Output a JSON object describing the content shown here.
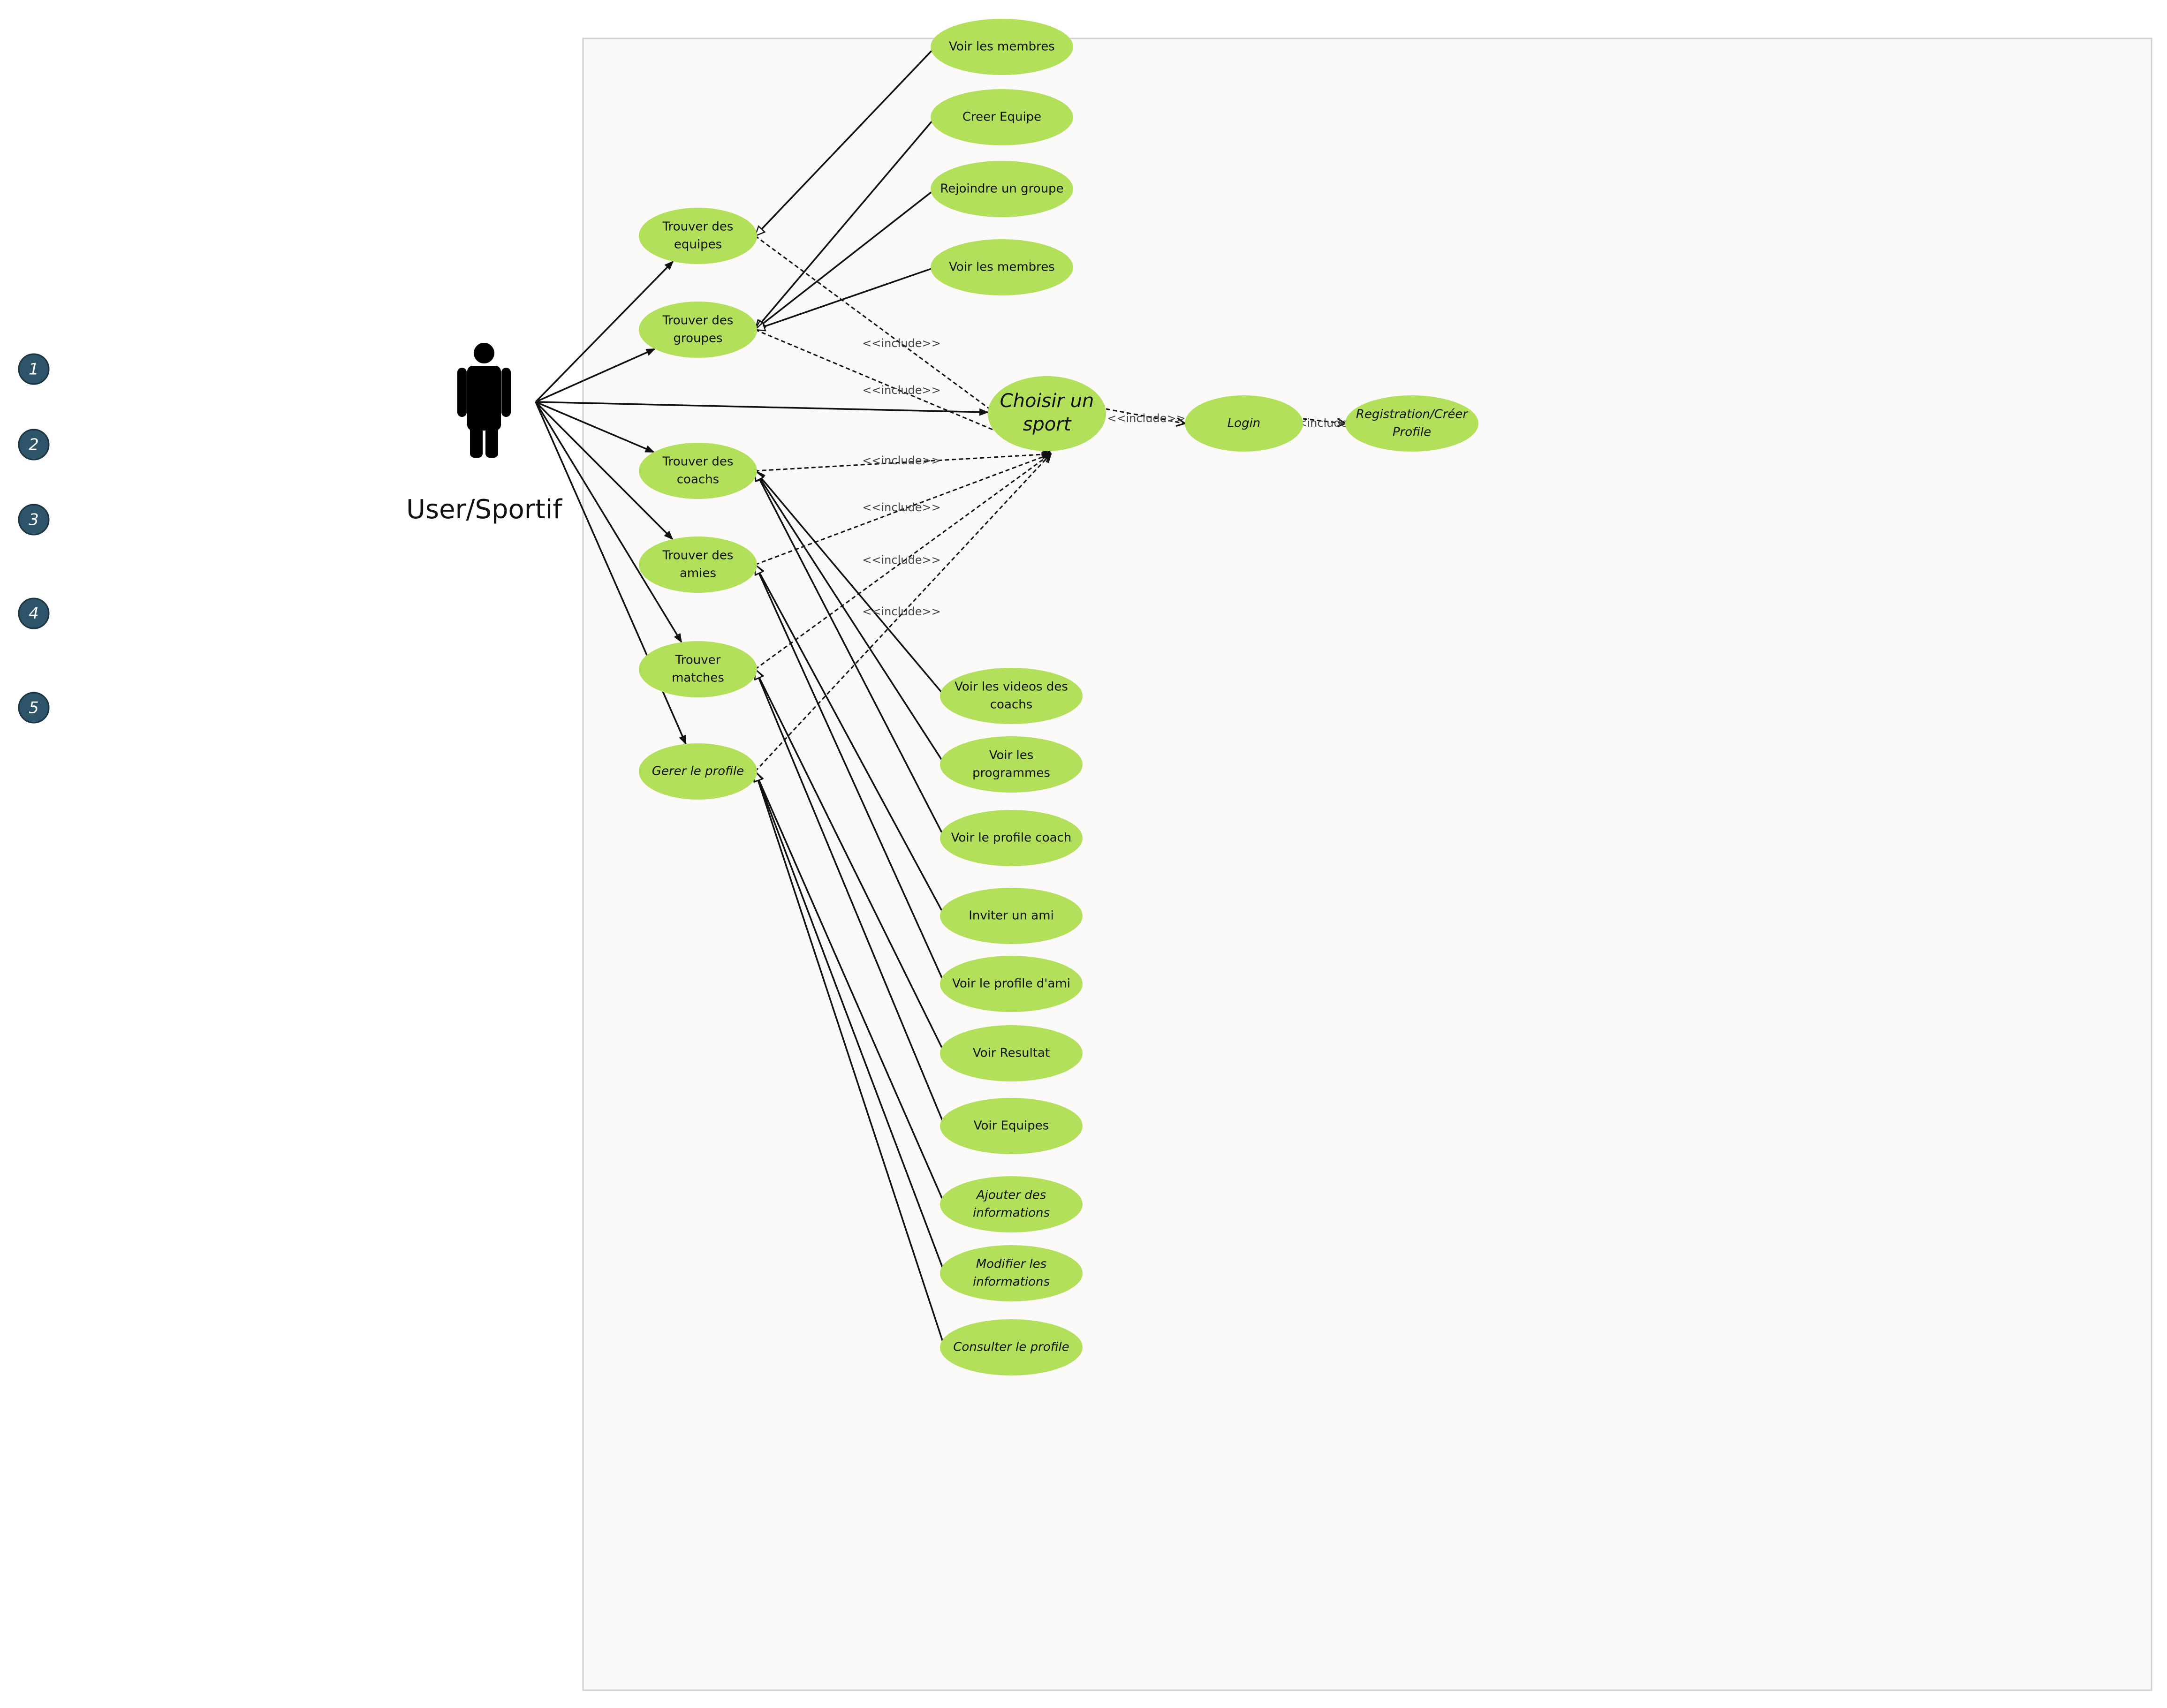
{
  "colors": {
    "usecase_fill": "#b2e05a",
    "boundary_fill": "#fbfaf8",
    "boundary_stroke": "#cfcfcf",
    "marker_fill": "#2d5468",
    "line": "#111111"
  },
  "actor": {
    "label": "User/Sportif",
    "icon": "person-icon"
  },
  "markers": [
    "1",
    "2",
    "3",
    "4",
    "5"
  ],
  "use_cases": [
    {
      "id": "voir_membres_1",
      "lines": [
        "Voir les membres"
      ],
      "italic": false
    },
    {
      "id": "creer_equipe",
      "lines": [
        "Creer Equipe"
      ],
      "italic": false
    },
    {
      "id": "rejoindre_groupe",
      "lines": [
        "Rejoindre un groupe"
      ],
      "italic": false
    },
    {
      "id": "voir_membres_2",
      "lines": [
        "Voir les membres"
      ],
      "italic": false
    },
    {
      "id": "trouver_equipes",
      "lines": [
        "Trouver des",
        "equipes"
      ],
      "italic": false
    },
    {
      "id": "trouver_groupes",
      "lines": [
        "Trouver des",
        "groupes"
      ],
      "italic": false
    },
    {
      "id": "trouver_coachs",
      "lines": [
        "Trouver des",
        "coachs"
      ],
      "italic": false
    },
    {
      "id": "trouver_amies",
      "lines": [
        "Trouver des",
        "amies"
      ],
      "italic": false
    },
    {
      "id": "trouver_matches",
      "lines": [
        "Trouver",
        "matches"
      ],
      "italic": false
    },
    {
      "id": "gerer_profile",
      "lines": [
        "Gerer le profile"
      ],
      "italic": true
    },
    {
      "id": "choisir_sport",
      "lines": [
        "Choisir un",
        "sport"
      ],
      "italic": true
    },
    {
      "id": "login",
      "lines": [
        "Login"
      ],
      "italic": true
    },
    {
      "id": "registration",
      "lines": [
        "Registration/Créer",
        "Profile"
      ],
      "italic": true
    },
    {
      "id": "voir_videos",
      "lines": [
        "Voir les videos des",
        "coachs"
      ],
      "italic": false
    },
    {
      "id": "voir_programmes",
      "lines": [
        "Voir les",
        "programmes"
      ],
      "italic": false
    },
    {
      "id": "voir_profile_coach",
      "lines": [
        "Voir le profile coach"
      ],
      "italic": false
    },
    {
      "id": "inviter_ami",
      "lines": [
        "Inviter un ami"
      ],
      "italic": false
    },
    {
      "id": "voir_profile_ami",
      "lines": [
        "Voir le profile d'ami"
      ],
      "italic": false
    },
    {
      "id": "voir_resultat",
      "lines": [
        "Voir Resultat"
      ],
      "italic": false
    },
    {
      "id": "voir_equipes",
      "lines": [
        "Voir Equipes"
      ],
      "italic": false
    },
    {
      "id": "ajouter_infos",
      "lines": [
        "Ajouter des",
        "informations"
      ],
      "italic": true
    },
    {
      "id": "modifier_infos",
      "lines": [
        "Modifier les",
        "informations"
      ],
      "italic": true
    },
    {
      "id": "consulter_profile",
      "lines": [
        "Consulter le profile"
      ],
      "italic": true
    }
  ],
  "associations": [
    {
      "from": "actor",
      "to": "trouver_equipes"
    },
    {
      "from": "actor",
      "to": "trouver_groupes"
    },
    {
      "from": "actor",
      "to": "choisir_sport"
    },
    {
      "from": "actor",
      "to": "trouver_coachs"
    },
    {
      "from": "actor",
      "to": "trouver_amies"
    },
    {
      "from": "actor",
      "to": "trouver_matches"
    },
    {
      "from": "actor",
      "to": "gerer_profile"
    }
  ],
  "generalizations": [
    {
      "child": "voir_membres_1",
      "parent": "trouver_equipes"
    },
    {
      "child": "creer_equipe",
      "parent": "trouver_groupes"
    },
    {
      "child": "rejoindre_groupe",
      "parent": "trouver_groupes"
    },
    {
      "child": "voir_membres_2",
      "parent": "trouver_groupes"
    },
    {
      "child": "voir_videos",
      "parent": "trouver_coachs"
    },
    {
      "child": "voir_programmes",
      "parent": "trouver_coachs"
    },
    {
      "child": "voir_profile_coach",
      "parent": "trouver_coachs"
    },
    {
      "child": "inviter_ami",
      "parent": "trouver_amies"
    },
    {
      "child": "voir_profile_ami",
      "parent": "trouver_amies"
    },
    {
      "child": "voir_resultat",
      "parent": "trouver_matches"
    },
    {
      "child": "voir_equipes",
      "parent": "trouver_matches"
    },
    {
      "child": "ajouter_infos",
      "parent": "gerer_profile"
    },
    {
      "child": "modifier_infos",
      "parent": "gerer_profile"
    },
    {
      "child": "consulter_profile",
      "parent": "gerer_profile"
    }
  ],
  "includes": [
    {
      "from": "trouver_equipes",
      "to": "choisir_sport",
      "label": "<<include>>"
    },
    {
      "from": "trouver_groupes",
      "to": "choisir_sport",
      "label": "<<include>>"
    },
    {
      "from": "trouver_coachs",
      "to": "choisir_sport",
      "label": "<<include>>"
    },
    {
      "from": "trouver_amies",
      "to": "choisir_sport",
      "label": "<<include>>"
    },
    {
      "from": "trouver_matches",
      "to": "choisir_sport",
      "label": "<<include>>"
    },
    {
      "from": "gerer_profile",
      "to": "choisir_sport",
      "label": "<<include>>"
    },
    {
      "from": "choisir_sport",
      "to": "login",
      "label": "<<include>>"
    },
    {
      "from": "login",
      "to": "registration",
      "label": "<<include>>"
    }
  ]
}
